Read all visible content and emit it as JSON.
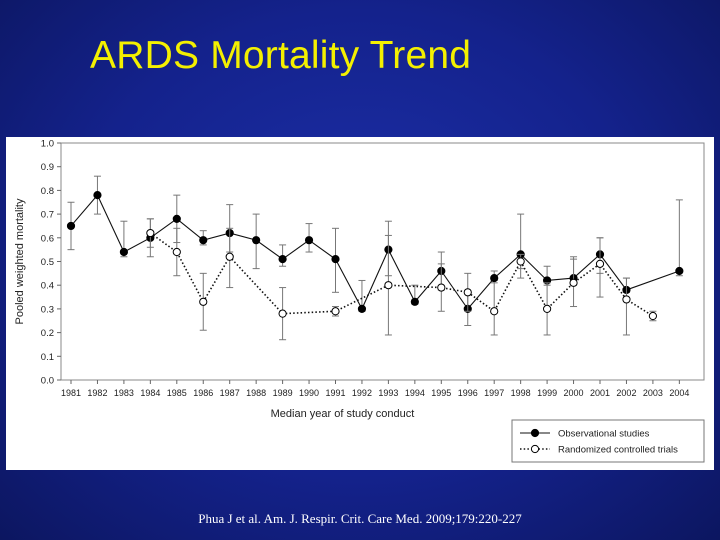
{
  "slide": {
    "title": "ARDS Mortality Trend",
    "citation": "Phua J et al. Am. J. Respir. Crit. Care Med. 2009;179:220-227"
  },
  "colors": {
    "background": "#14228c",
    "title": "#f4f000",
    "citation": "#ffffff"
  },
  "chart_data": {
    "type": "line",
    "title": "",
    "xlabel": "Median year of study conduct",
    "ylabel": "Pooled weighted mortality",
    "ylim": [
      0,
      1.0
    ],
    "y_ticks": [
      "0.0",
      "0.1",
      "0.2",
      "0.3",
      "0.4",
      "0.5",
      "0.6",
      "0.7",
      "0.8",
      "0.9",
      "1.0"
    ],
    "categories": [
      "1981",
      "1982",
      "1983",
      "1984",
      "1985",
      "1986",
      "1987",
      "1988",
      "1989",
      "1990",
      "1991",
      "1992",
      "1993",
      "1994",
      "1995",
      "1996",
      "1997",
      "1998",
      "1999",
      "2000",
      "2001",
      "2002",
      "2003",
      "2004"
    ],
    "grid": false,
    "legend_position": "bottom-right",
    "series": [
      {
        "name": "Observational studies",
        "style": "solid-filled-circle",
        "color": "#000000",
        "points": [
          {
            "x": "1981",
            "y": 0.65,
            "err": [
              0.55,
              0.75
            ]
          },
          {
            "x": "1982",
            "y": 0.78,
            "err": [
              0.7,
              0.86
            ]
          },
          {
            "x": "1983",
            "y": 0.54,
            "err": [
              0.52,
              0.67
            ]
          },
          {
            "x": "1984",
            "y": 0.6,
            "err": [
              0.52,
              0.68
            ]
          },
          {
            "x": "1985",
            "y": 0.68,
            "err": [
              0.58,
              0.78
            ]
          },
          {
            "x": "1986",
            "y": 0.59,
            "err": [
              0.57,
              0.63
            ]
          },
          {
            "x": "1987",
            "y": 0.62,
            "err": [
              0.54,
              0.74
            ]
          },
          {
            "x": "1988",
            "y": 0.59,
            "err": [
              0.47,
              0.7
            ]
          },
          {
            "x": "1989",
            "y": 0.51,
            "err": [
              0.48,
              0.57
            ]
          },
          {
            "x": "1990",
            "y": 0.59,
            "err": [
              0.54,
              0.66
            ]
          },
          {
            "x": "1991",
            "y": 0.51,
            "err": [
              0.37,
              0.64
            ]
          },
          {
            "x": "1992",
            "y": 0.3,
            "err": [
              0.29,
              0.42
            ]
          },
          {
            "x": "1993",
            "y": 0.55,
            "err": [
              0.44,
              0.67
            ]
          },
          {
            "x": "1994",
            "y": 0.33,
            "err": [
              0.32,
              0.4
            ]
          },
          {
            "x": "1995",
            "y": 0.46,
            "err": [
              0.38,
              0.54
            ]
          },
          {
            "x": "1996",
            "y": 0.3,
            "err": [
              0.23,
              0.37
            ]
          },
          {
            "x": "1997",
            "y": 0.43,
            "err": [
              0.42,
              0.46
            ]
          },
          {
            "x": "1998",
            "y": 0.53,
            "err": [
              0.43,
              0.7
            ]
          },
          {
            "x": "1999",
            "y": 0.42,
            "err": [
              0.4,
              0.48
            ]
          },
          {
            "x": "2000",
            "y": 0.43,
            "err": [
              0.4,
              0.52
            ]
          },
          {
            "x": "2001",
            "y": 0.53,
            "err": [
              0.45,
              0.6
            ]
          },
          {
            "x": "2002",
            "y": 0.38,
            "err": [
              0.37,
              0.43
            ]
          },
          {
            "x": "2004",
            "y": 0.46,
            "err": [
              0.44,
              0.76
            ]
          }
        ]
      },
      {
        "name": "Randomized controlled trials",
        "style": "dotted-open-circle",
        "color": "#000000",
        "points": [
          {
            "x": "1984",
            "y": 0.62,
            "err": [
              0.56,
              0.68
            ]
          },
          {
            "x": "1985",
            "y": 0.54,
            "err": [
              0.44,
              0.64
            ]
          },
          {
            "x": "1986",
            "y": 0.33,
            "err": [
              0.21,
              0.45
            ]
          },
          {
            "x": "1987",
            "y": 0.52,
            "err": [
              0.39,
              0.64
            ]
          },
          {
            "x": "1989",
            "y": 0.28,
            "err": [
              0.17,
              0.39
            ]
          },
          {
            "x": "1991",
            "y": 0.29,
            "err": [
              0.27,
              0.31
            ]
          },
          {
            "x": "1993",
            "y": 0.4,
            "err": [
              0.19,
              0.61
            ]
          },
          {
            "x": "1995",
            "y": 0.39,
            "err": [
              0.29,
              0.49
            ]
          },
          {
            "x": "1996",
            "y": 0.37,
            "err": [
              0.29,
              0.45
            ]
          },
          {
            "x": "1997",
            "y": 0.29,
            "err": [
              0.19,
              0.41
            ]
          },
          {
            "x": "1998",
            "y": 0.5,
            "err": [
              0.47,
              0.53
            ]
          },
          {
            "x": "1999",
            "y": 0.3,
            "err": [
              0.19,
              0.41
            ]
          },
          {
            "x": "2000",
            "y": 0.41,
            "err": [
              0.31,
              0.51
            ]
          },
          {
            "x": "2001",
            "y": 0.49,
            "err": [
              0.35,
              0.6
            ]
          },
          {
            "x": "2002",
            "y": 0.34,
            "err": [
              0.19,
              0.43
            ]
          },
          {
            "x": "2003",
            "y": 0.27,
            "err": [
              0.25,
              0.29
            ]
          }
        ]
      }
    ]
  }
}
